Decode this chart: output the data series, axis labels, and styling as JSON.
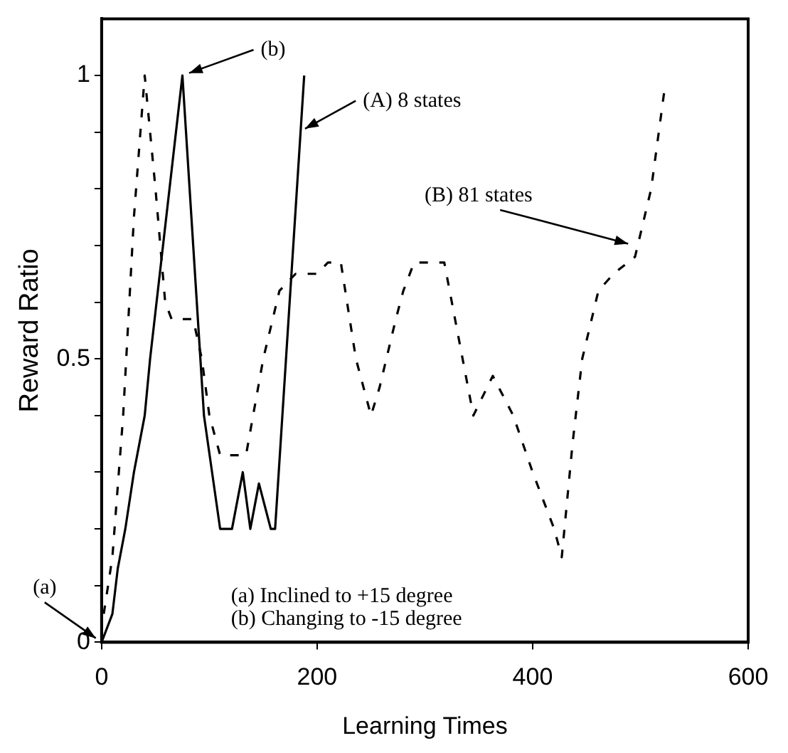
{
  "chart_data": {
    "type": "line",
    "xlabel": "Learning Times",
    "ylabel": "Reward Ratio",
    "xlim": [
      0,
      600
    ],
    "xticks": [
      0,
      200,
      400,
      600
    ],
    "ylim": [
      0,
      1.1
    ],
    "yticks": [
      0,
      {
        "value": 0.1,
        "label": null
      },
      {
        "value": 0.2,
        "label": null
      },
      {
        "value": 0.3,
        "label": null
      },
      {
        "value": 0.4,
        "label": null
      },
      0.5,
      {
        "value": 0.6,
        "label": null
      },
      {
        "value": 0.7,
        "label": null
      },
      {
        "value": 0.8,
        "label": null
      },
      {
        "value": 0.9,
        "label": null
      },
      1
    ],
    "grid": false,
    "legend": false,
    "marker": "none",
    "series": [
      {
        "color": "#000000",
        "line_style": "solid",
        "x": [
          0,
          4,
          10,
          15,
          22,
          30,
          40,
          45,
          75,
          95,
          110,
          121,
          131,
          138,
          146,
          157,
          161,
          188
        ],
        "values": [
          0,
          0.02,
          0.05,
          0.13,
          0.2,
          0.3,
          0.4,
          0.5,
          1.0,
          0.4,
          0.2,
          0.2,
          0.3,
          0.2,
          0.28,
          0.2,
          0.2,
          1.0
        ]
      },
      {
        "color": "#000000",
        "line_style": "dashed",
        "x": [
          2,
          10,
          20,
          30,
          40,
          50,
          59,
          65,
          85,
          93,
          100,
          110,
          134,
          150,
          165,
          180,
          200,
          210,
          222,
          236,
          250,
          258,
          273,
          280,
          290,
          318,
          330,
          345,
          363,
          382,
          400,
          410,
          420,
          427,
          437,
          446,
          461,
          475,
          495,
          510,
          522
        ],
        "values": [
          0.05,
          0.15,
          0.4,
          0.75,
          1.0,
          0.8,
          0.6,
          0.57,
          0.57,
          0.5,
          0.4,
          0.33,
          0.33,
          0.5,
          0.62,
          0.65,
          0.65,
          0.67,
          0.67,
          0.5,
          0.4,
          0.45,
          0.57,
          0.62,
          0.67,
          0.67,
          0.55,
          0.4,
          0.47,
          0.4,
          0.3,
          0.25,
          0.2,
          0.15,
          0.35,
          0.5,
          0.62,
          0.65,
          0.68,
          0.8,
          0.97
        ]
      }
    ],
    "annotations": [
      {
        "text": "(A) 8 states",
        "x": 183,
        "y": 0.9
      },
      {
        "text": "(B) 81 states",
        "x": 495,
        "y": 0.7
      },
      {
        "text": "(a)",
        "x": 0,
        "y": 0
      },
      {
        "text": "(b)",
        "x": 75,
        "y": 1.0
      },
      "(a) Inclined to +15 degree",
      "(b) Changing to -15 degree"
    ]
  }
}
